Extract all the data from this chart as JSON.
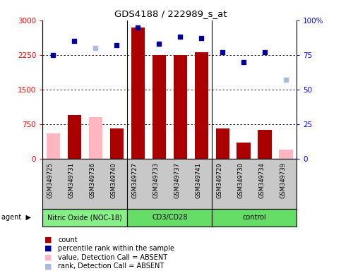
{
  "title": "GDS4188 / 222989_s_at",
  "samples": [
    "GSM349725",
    "GSM349731",
    "GSM349736",
    "GSM349740",
    "GSM349727",
    "GSM349733",
    "GSM349737",
    "GSM349741",
    "GSM349729",
    "GSM349730",
    "GSM349734",
    "GSM349739"
  ],
  "bar_values": [
    550,
    950,
    900,
    650,
    2850,
    2250,
    2250,
    2300,
    650,
    350,
    620,
    200
  ],
  "bar_absent": [
    true,
    false,
    true,
    false,
    false,
    false,
    false,
    false,
    false,
    false,
    false,
    true
  ],
  "dot_values": [
    75,
    85,
    80,
    82,
    95,
    83,
    88,
    87,
    77,
    70,
    77,
    57
  ],
  "dot_absent": [
    false,
    false,
    true,
    false,
    false,
    false,
    false,
    false,
    false,
    false,
    false,
    true
  ],
  "ylim_left": [
    0,
    3000
  ],
  "ylim_right": [
    0,
    100
  ],
  "yticks_left": [
    0,
    750,
    1500,
    2250,
    3000
  ],
  "yticks_right": [
    0,
    25,
    50,
    75,
    100
  ],
  "ytick_labels_left": [
    "0",
    "750",
    "1500",
    "2250",
    "3000"
  ],
  "ytick_labels_right": [
    "0",
    "25",
    "50",
    "75",
    "100%"
  ],
  "bar_color_present": "#AA0000",
  "bar_color_absent": "#FFB6C1",
  "dot_color_present": "#000099",
  "dot_color_absent": "#AABBDD",
  "group_data": [
    {
      "name": "Nitric Oxide (NOC-18)",
      "start": 0,
      "end": 3,
      "color": "#88EE88"
    },
    {
      "name": "CD3/CD28",
      "start": 4,
      "end": 7,
      "color": "#66DD66"
    },
    {
      "name": "control",
      "start": 8,
      "end": 11,
      "color": "#66DD66"
    }
  ],
  "legend_items": [
    {
      "label": "count",
      "color": "#AA0000"
    },
    {
      "label": "percentile rank within the sample",
      "color": "#000099"
    },
    {
      "label": "value, Detection Call = ABSENT",
      "color": "#FFB6C1"
    },
    {
      "label": "rank, Detection Call = ABSENT",
      "color": "#AABBDD"
    }
  ]
}
